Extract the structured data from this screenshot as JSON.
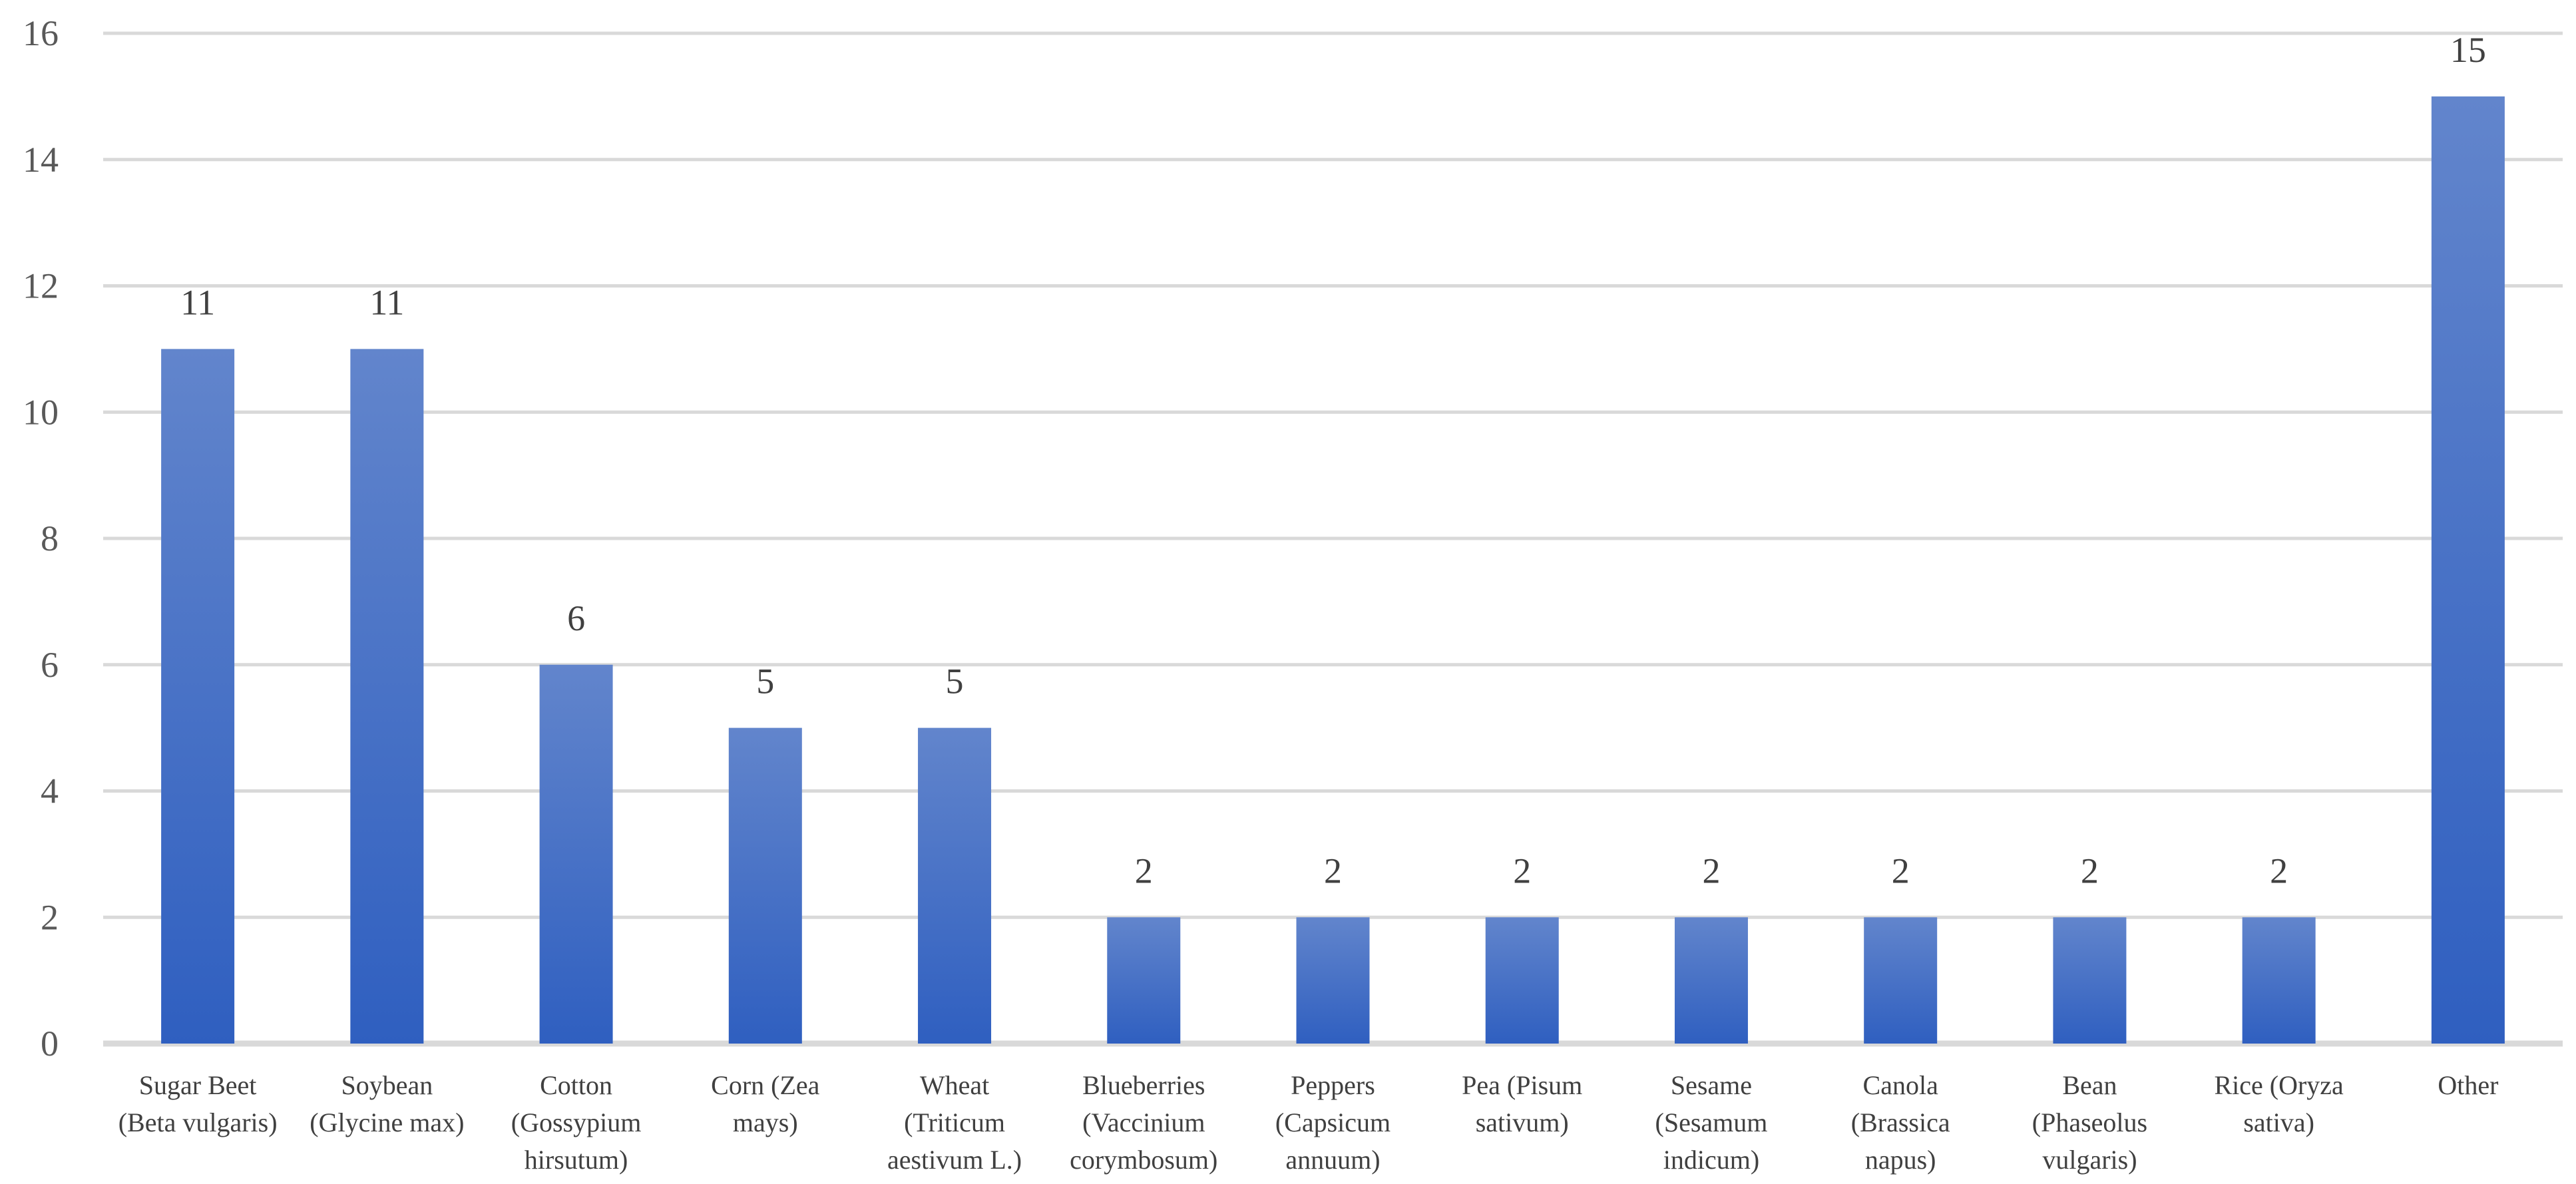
{
  "chart_data": {
    "type": "bar",
    "categories": [
      [
        "Sugar Beet",
        "(Beta vulgaris)"
      ],
      [
        "Soybean",
        "(Glycine max)"
      ],
      [
        "Cotton",
        "(Gossypium",
        "hirsutum)"
      ],
      [
        "Corn  (Zea",
        "mays)"
      ],
      [
        "Wheat",
        "(Triticum",
        "aestivum L.)"
      ],
      [
        "Blueberries",
        "(Vaccinium",
        "corymbosum)"
      ],
      [
        "Peppers",
        "(Capsicum",
        "annuum)"
      ],
      [
        "Pea  (Pisum",
        "sativum)"
      ],
      [
        "Sesame",
        "(Sesamum",
        "indicum)"
      ],
      [
        "Canola",
        "(Brassica",
        "napus)"
      ],
      [
        "Bean",
        "(Phaseolus",
        "vulgaris)"
      ],
      [
        "Rice  (Oryza",
        "sativa)"
      ],
      [
        "Other"
      ]
    ],
    "values": [
      11,
      11,
      6,
      5,
      5,
      2,
      2,
      2,
      2,
      2,
      2,
      2,
      15
    ],
    "data_labels": [
      "11",
      "11",
      "6",
      "5",
      "5",
      "2",
      "2",
      "2",
      "2",
      "2",
      "2",
      "2",
      "15"
    ],
    "yticks": [
      "0",
      "2",
      "4",
      "6",
      "8",
      "10",
      "12",
      "14",
      "16"
    ],
    "ylim": [
      0,
      16
    ],
    "grid": true,
    "legend": "none",
    "colors": {
      "bar_top": "#6285CC",
      "bar_bottom": "#2F5FC0",
      "grid": "#D9D9D9"
    }
  }
}
